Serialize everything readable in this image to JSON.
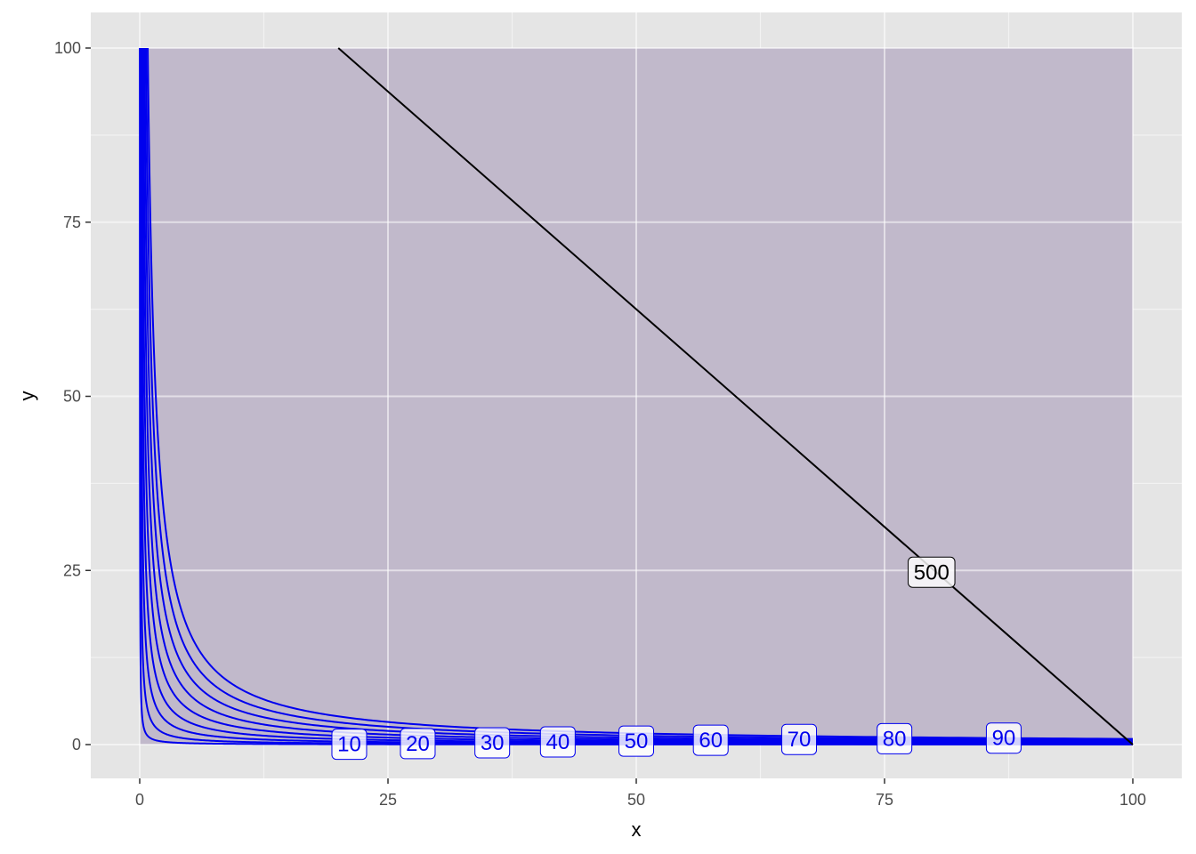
{
  "chart_data": {
    "type": "line",
    "title": "",
    "xlabel": "x",
    "ylabel": "y",
    "xlim": [
      0,
      100
    ],
    "ylim": [
      0,
      100
    ],
    "x_ticks": [
      0,
      25,
      50,
      75,
      100
    ],
    "y_ticks": [
      0,
      25,
      50,
      75,
      100
    ],
    "grid": true,
    "legend": "none",
    "region": {
      "x": [
        0,
        100
      ],
      "y": [
        0,
        100
      ],
      "fill": "#c1b9cb"
    },
    "contours": {
      "description": "indifference curves y = (k/10)^2 / x",
      "color": "#0000ee",
      "levels": [
        10,
        20,
        30,
        40,
        50,
        60,
        70,
        80,
        90
      ],
      "label_x": [
        21.1,
        28.0,
        35.5,
        42.1,
        50.0,
        57.5,
        66.4,
        76.0,
        87.0
      ]
    },
    "constraint_line": {
      "label": "500",
      "color": "#000000",
      "points": [
        [
          20,
          100
        ],
        [
          100,
          0
        ]
      ],
      "label_x": 80
    }
  }
}
